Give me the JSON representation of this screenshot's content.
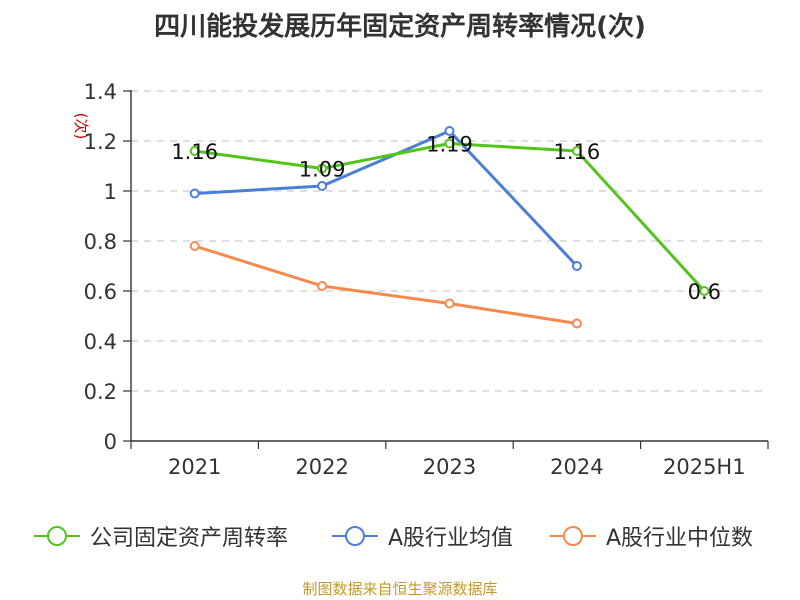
{
  "title": "四川能投发展历年固定资产周转率情况(次)",
  "source": "制图数据来自恒生聚源数据库",
  "colors": {
    "green": "#52c41a",
    "blue": "#4a7fd8",
    "orange": "#f5894e",
    "grid": "#cccccc",
    "axis": "#333333",
    "unit": "#cc0000"
  },
  "chart_data": {
    "type": "line",
    "title": "四川能投发展历年固定资产周转率情况(次)",
    "ylabel": "(次)",
    "xlabel": "",
    "ylim": [
      0,
      1.4
    ],
    "yticks": [
      0,
      0.2,
      0.4,
      0.6,
      0.8,
      1,
      1.2,
      1.4
    ],
    "ytick_labels": [
      "0",
      "0.2",
      "0.4",
      "0.6",
      "0.8",
      "1",
      "1.2",
      "1.4"
    ],
    "categories": [
      "2021",
      "2022",
      "2023",
      "2024",
      "2025H1"
    ],
    "series": [
      {
        "name": "公司固定资产周转率",
        "color": "#52c41a",
        "values": [
          1.16,
          1.09,
          1.19,
          1.16,
          0.6
        ],
        "labels": [
          "1.16",
          "1.09",
          "1.19",
          "1.16",
          "0.6"
        ]
      },
      {
        "name": "A股行业均值",
        "color": "#4a7fd8",
        "values": [
          0.99,
          1.02,
          1.24,
          0.7,
          null
        ]
      },
      {
        "name": "A股行业中位数",
        "color": "#f5894e",
        "values": [
          0.78,
          0.62,
          0.55,
          0.47,
          null
        ]
      }
    ],
    "legend_position": "bottom",
    "grid": true
  }
}
